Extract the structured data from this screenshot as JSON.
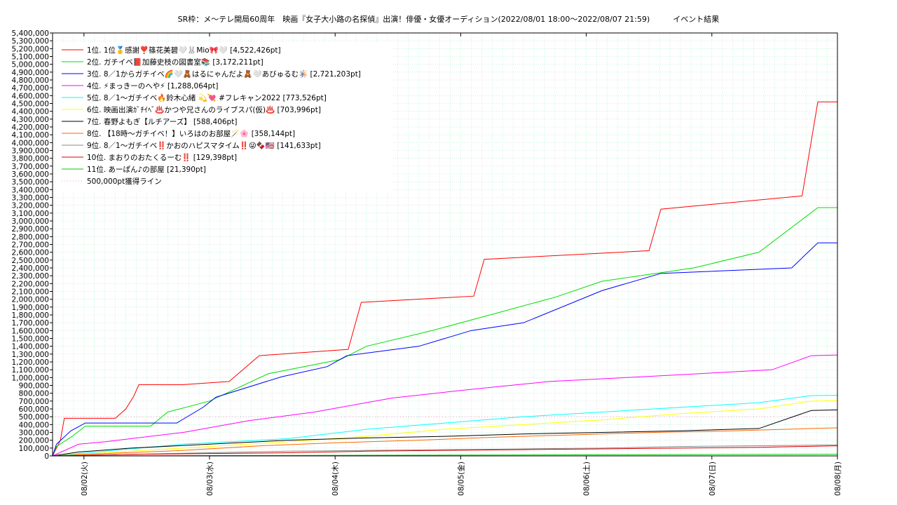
{
  "chart_data": {
    "type": "line",
    "title": "SR枠：メ～テレ開局60周年　映画『女子大小路の名探偵』出演！俳優・女優オーディション(2022/08/01 18:00～2022/08/07 21:59)　　　イベント結果",
    "xlabel": "",
    "ylabel": "",
    "x_ticks": [
      "08/02(火)",
      "08/03(水)",
      "08/04(木)",
      "08/05(金)",
      "08/06(土)",
      "08/07(日)",
      "08/08(月)"
    ],
    "x_range": [
      "2022/08/01 18:00",
      "2022/08/08 00:00"
    ],
    "ylim": [
      0,
      5400000
    ],
    "y_tick_step": 100000,
    "grid": true,
    "legend_position": "top-left",
    "threshold": {
      "name": "500,000pt獲得ライン",
      "value": 500000,
      "color": "#ff99cc"
    },
    "series": [
      {
        "name": "1位. 1位🥇感謝❣️篠花美碧🤍🐰Mio🎀🤍 [4,522,426pt]",
        "color": "#ff0000",
        "points": [
          [
            0,
            0
          ],
          [
            0.6,
            200000
          ],
          [
            0.9,
            480000
          ],
          [
            3,
            480000
          ],
          [
            4.8,
            480000
          ],
          [
            5.6,
            600000
          ],
          [
            6.2,
            760000
          ],
          [
            6.6,
            910000
          ],
          [
            10,
            910000
          ],
          [
            13.5,
            950000
          ],
          [
            15.8,
            1280000
          ],
          [
            22.6,
            1360000
          ],
          [
            23.6,
            1960000
          ],
          [
            32.2,
            2040000
          ],
          [
            33.0,
            2510000
          ],
          [
            45.6,
            2620000
          ],
          [
            46.5,
            3150000
          ],
          [
            57.3,
            3320000
          ],
          [
            58.5,
            4520000
          ],
          [
            60.0,
            4520000
          ]
        ]
      },
      {
        "name": "2位. ガチイベ📕加藤史枝の図書室📚 [3,172,211pt]",
        "color": "#00dd00",
        "points": [
          [
            0,
            0
          ],
          [
            0.3,
            120000
          ],
          [
            1.5,
            250000
          ],
          [
            2.5,
            380000
          ],
          [
            7.5,
            380000
          ],
          [
            8.8,
            560000
          ],
          [
            12,
            700000
          ],
          [
            16.5,
            1050000
          ],
          [
            22,
            1230000
          ],
          [
            24,
            1400000
          ],
          [
            29,
            1600000
          ],
          [
            33,
            1780000
          ],
          [
            38.5,
            2030000
          ],
          [
            42,
            2230000
          ],
          [
            49,
            2400000
          ],
          [
            54,
            2600000
          ],
          [
            58.5,
            3170000
          ],
          [
            60,
            3170000
          ]
        ]
      },
      {
        "name": "3位. 8／1からガチイベ🌈🤍🧸はるにゃんだよ🧸🤍あびゅるむ🪅 [2,721,203pt]",
        "color": "#0000ff",
        "points": [
          [
            0,
            0
          ],
          [
            0.3,
            150000
          ],
          [
            1.4,
            320000
          ],
          [
            2.5,
            420000
          ],
          [
            9.5,
            420000
          ],
          [
            11.5,
            620000
          ],
          [
            12.5,
            750000
          ],
          [
            17.5,
            1010000
          ],
          [
            21,
            1140000
          ],
          [
            22.5,
            1280000
          ],
          [
            28,
            1400000
          ],
          [
            32,
            1600000
          ],
          [
            36,
            1700000
          ],
          [
            42,
            2110000
          ],
          [
            46.5,
            2330000
          ],
          [
            56.5,
            2400000
          ],
          [
            58.5,
            2720000
          ],
          [
            60,
            2720000
          ]
        ]
      },
      {
        "name": "4位. ⚡まっきーのへや⚡ [1,288,064pt]",
        "color": "#ff00ff",
        "points": [
          [
            0,
            0
          ],
          [
            2,
            150000
          ],
          [
            4,
            180000
          ],
          [
            10,
            300000
          ],
          [
            15,
            450000
          ],
          [
            20,
            560000
          ],
          [
            26,
            740000
          ],
          [
            32,
            850000
          ],
          [
            38,
            950000
          ],
          [
            45,
            1010000
          ],
          [
            55,
            1100000
          ],
          [
            58,
            1280000
          ],
          [
            60,
            1288000
          ]
        ]
      },
      {
        "name": "5位. 8／1～ガチイベ🔥鈴木心緒 💫💘 #フレキャン2022 [773,526pt]",
        "color": "#00ffff",
        "points": [
          [
            0,
            0
          ],
          [
            4,
            60000
          ],
          [
            10,
            150000
          ],
          [
            18,
            220000
          ],
          [
            24,
            340000
          ],
          [
            30,
            420000
          ],
          [
            36,
            500000
          ],
          [
            42,
            560000
          ],
          [
            48,
            620000
          ],
          [
            54,
            680000
          ],
          [
            58,
            770000
          ],
          [
            60,
            773000
          ]
        ]
      },
      {
        "name": "6位. 映画出演ｶﾞﾁｲﾍﾞ♨️かつや兄さんのライブスパ(仮)♨️ [703,996pt]",
        "color": "#ffff00",
        "points": [
          [
            0,
            0
          ],
          [
            4,
            40000
          ],
          [
            10,
            100000
          ],
          [
            18,
            180000
          ],
          [
            24,
            250000
          ],
          [
            30,
            340000
          ],
          [
            36,
            400000
          ],
          [
            42,
            460000
          ],
          [
            48,
            540000
          ],
          [
            54,
            600000
          ],
          [
            58,
            700000
          ],
          [
            60,
            704000
          ]
        ]
      },
      {
        "name": "7位. 春野よもぎ【ルチアーズ】 [588,406pt]",
        "color": "#000000",
        "points": [
          [
            0,
            0
          ],
          [
            2,
            50000
          ],
          [
            6,
            100000
          ],
          [
            12,
            150000
          ],
          [
            18,
            200000
          ],
          [
            24,
            230000
          ],
          [
            30,
            250000
          ],
          [
            36,
            280000
          ],
          [
            42,
            300000
          ],
          [
            48,
            320000
          ],
          [
            54,
            350000
          ],
          [
            58,
            580000
          ],
          [
            60,
            588000
          ]
        ]
      },
      {
        "name": "8位. 【18時～ガチイベ！】いろはのお部屋🪄🌸 [358,144pt]",
        "color": "#ff6600",
        "points": [
          [
            0,
            0
          ],
          [
            4,
            30000
          ],
          [
            10,
            70000
          ],
          [
            16,
            130000
          ],
          [
            22,
            170000
          ],
          [
            28,
            200000
          ],
          [
            34,
            240000
          ],
          [
            40,
            270000
          ],
          [
            46,
            300000
          ],
          [
            52,
            320000
          ],
          [
            58,
            350000
          ],
          [
            60,
            358000
          ]
        ]
      },
      {
        "name": "9位. 8／1～ガチイベ‼️かおのハピスマタイム‼️😜🍫🇺🇸 [141,633pt]",
        "color": "#888888",
        "points": [
          [
            0,
            0
          ],
          [
            6,
            20000
          ],
          [
            12,
            40000
          ],
          [
            18,
            60000
          ],
          [
            24,
            70000
          ],
          [
            30,
            80000
          ],
          [
            36,
            90000
          ],
          [
            42,
            100000
          ],
          [
            48,
            120000
          ],
          [
            54,
            130000
          ],
          [
            60,
            141000
          ]
        ]
      },
      {
        "name": "10位. まおりのおたくるーむ‼️ [129,398pt]",
        "color": "#dd0000",
        "points": [
          [
            0,
            0
          ],
          [
            6,
            20000
          ],
          [
            12,
            30000
          ],
          [
            18,
            40000
          ],
          [
            24,
            60000
          ],
          [
            30,
            70000
          ],
          [
            36,
            80000
          ],
          [
            42,
            90000
          ],
          [
            48,
            100000
          ],
          [
            54,
            110000
          ],
          [
            60,
            129000
          ]
        ]
      },
      {
        "name": "11位. あーぱん♪の部屋 [21,390pt]",
        "color": "#00cc00",
        "points": [
          [
            0,
            0
          ],
          [
            30,
            10000
          ],
          [
            60,
            21000
          ]
        ]
      }
    ]
  }
}
